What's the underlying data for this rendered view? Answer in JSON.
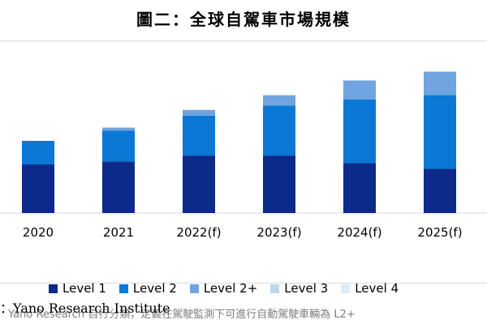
{
  "title": "圖二：全球自駕車市場規模",
  "note": "Yano Research  自行分類，定義在駕駛監測下可進行自動駕駛車輛為 L2+",
  "source": "：Yano Research Institute",
  "chart_data": {
    "type": "bar",
    "stacked": true,
    "categories": [
      "2020",
      "2021",
      "2022(f)",
      "2023(f)",
      "2024(f)",
      "2025(f)"
    ],
    "series": [
      {
        "name": "Level 1",
        "color": "#0b2a8a",
        "values": [
          33,
          35,
          39,
          39,
          34,
          30
        ]
      },
      {
        "name": "Level 2",
        "color": "#0a78d4",
        "values": [
          16,
          21,
          27,
          34,
          43,
          50
        ]
      },
      {
        "name": "Level 2+",
        "color": "#6fa4e0",
        "values": [
          0,
          2,
          4,
          7,
          13,
          16
        ]
      },
      {
        "name": "Level 3",
        "color": "#bdd7ee",
        "values": [
          0,
          0,
          0,
          0,
          0,
          0
        ]
      },
      {
        "name": "Level 4",
        "color": "#ddebf7",
        "values": [
          0,
          0,
          0,
          0,
          0,
          0
        ]
      }
    ],
    "ylim": [
      0,
      110
    ],
    "grid": false,
    "legend_position": "bottom"
  }
}
